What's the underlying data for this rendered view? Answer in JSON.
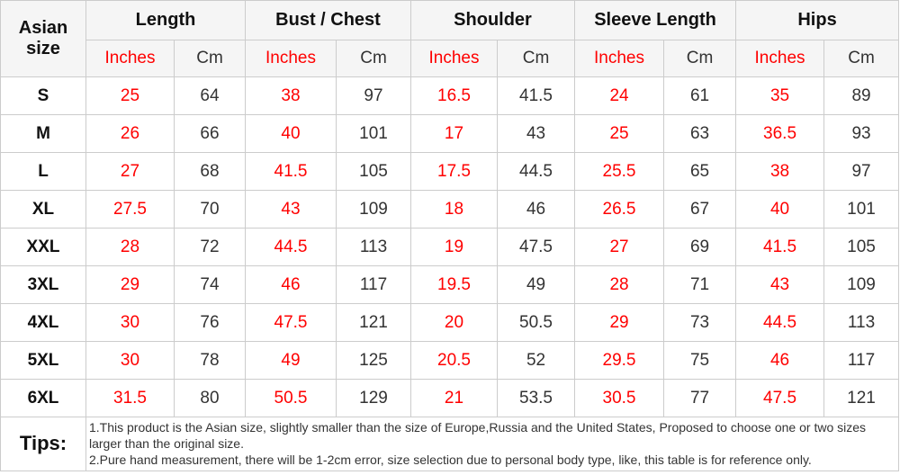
{
  "colors": {
    "inches_text": "#ff0000",
    "cm_text": "#333333",
    "header_background": "#f5f5f5",
    "grid_border": "#cccccc"
  },
  "chart_data": {
    "type": "table",
    "corner_header": "Asian size",
    "column_groups": [
      "Length",
      "Bust / Chest",
      "Shoulder",
      "Sleeve Length",
      "Hips"
    ],
    "unit_subheaders": [
      "Inches",
      "Cm"
    ],
    "rows": [
      {
        "size": "S",
        "values": [
          25,
          64,
          38,
          97,
          16.5,
          41.5,
          24,
          61,
          35,
          89
        ]
      },
      {
        "size": "M",
        "values": [
          26,
          66,
          40,
          101,
          17,
          43,
          25,
          63,
          36.5,
          93
        ]
      },
      {
        "size": "L",
        "values": [
          27,
          68,
          41.5,
          105,
          17.5,
          44.5,
          25.5,
          65,
          38,
          97
        ]
      },
      {
        "size": "XL",
        "values": [
          27.5,
          70,
          43,
          109,
          18,
          46,
          26.5,
          67,
          40,
          101
        ]
      },
      {
        "size": "XXL",
        "values": [
          28,
          72,
          44.5,
          113,
          19,
          47.5,
          27,
          69,
          41.5,
          105
        ]
      },
      {
        "size": "3XL",
        "values": [
          29,
          74,
          46,
          117,
          19.5,
          49,
          28,
          71,
          43,
          109
        ]
      },
      {
        "size": "4XL",
        "values": [
          30,
          76,
          47.5,
          121,
          20,
          50.5,
          29,
          73,
          44.5,
          113
        ]
      },
      {
        "size": "5XL",
        "values": [
          30,
          78,
          49,
          125,
          20.5,
          52,
          29.5,
          75,
          46,
          117
        ]
      },
      {
        "size": "6XL",
        "values": [
          31.5,
          80,
          50.5,
          129,
          21,
          53.5,
          30.5,
          77,
          47.5,
          121
        ]
      }
    ],
    "tips": {
      "label": "Tips:",
      "lines": [
        "1.This product is the Asian size, slightly smaller than the size of Europe,Russia and the United States, Proposed to choose one or two sizes larger than the original size.",
        "2.Pure hand measurement, there will be 1-2cm error, size selection due to personal body type, like, this table is for reference only."
      ]
    }
  }
}
